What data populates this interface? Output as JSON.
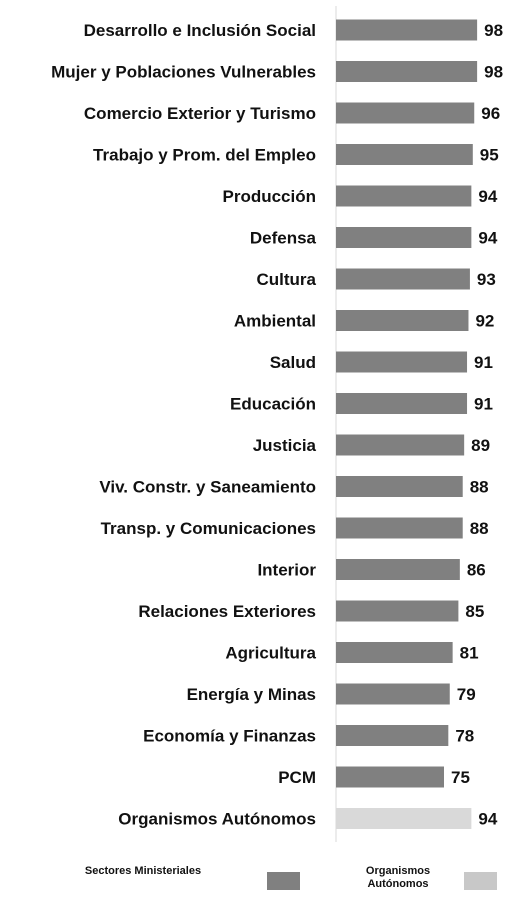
{
  "chart_data": {
    "type": "bar",
    "orientation": "horizontal",
    "categories": [
      "Desarrollo e Inclusión Social",
      "Mujer y Poblaciones Vulnerables",
      "Comercio Exterior y Turismo",
      "Trabajo y Prom. del Empleo",
      "Producción",
      "Defensa",
      "Cultura",
      "Ambiental",
      "Salud",
      "Educación",
      "Justicia",
      "Viv. Constr. y Saneamiento",
      "Transp. y Comunicaciones",
      "Interior",
      "Relaciones Exteriores",
      "Agricultura",
      "Energía y Minas",
      "Economía y Finanzas",
      "PCM",
      "Organismos Autónomos"
    ],
    "values": [
      98,
      98,
      96,
      95,
      94,
      94,
      93,
      92,
      91,
      91,
      89,
      88,
      88,
      86,
      85,
      81,
      79,
      78,
      75,
      94
    ],
    "groups": [
      "Sectores Ministeriales",
      "Sectores Ministeriales",
      "Sectores Ministeriales",
      "Sectores Ministeriales",
      "Sectores Ministeriales",
      "Sectores Ministeriales",
      "Sectores Ministeriales",
      "Sectores Ministeriales",
      "Sectores Ministeriales",
      "Sectores Ministeriales",
      "Sectores Ministeriales",
      "Sectores Ministeriales",
      "Sectores Ministeriales",
      "Sectores Ministeriales",
      "Sectores Ministeriales",
      "Sectores Ministeriales",
      "Sectores Ministeriales",
      "Sectores Ministeriales",
      "Sectores Ministeriales",
      "Organismos Autónomos"
    ],
    "series": [
      {
        "name": "Sectores Ministeriales",
        "color": "#808080"
      },
      {
        "name": "Organismos Autónomos",
        "color": "#d9d9d9"
      }
    ],
    "legend": {
      "position": "bottom",
      "items": [
        {
          "label": "Sectores Ministeriales",
          "color": "#808080"
        },
        {
          "label": "Organismos Autónomos",
          "color": "#c8c8c8"
        }
      ]
    },
    "xlim": [
      0,
      100
    ],
    "grid": false,
    "value_labels": true
  }
}
